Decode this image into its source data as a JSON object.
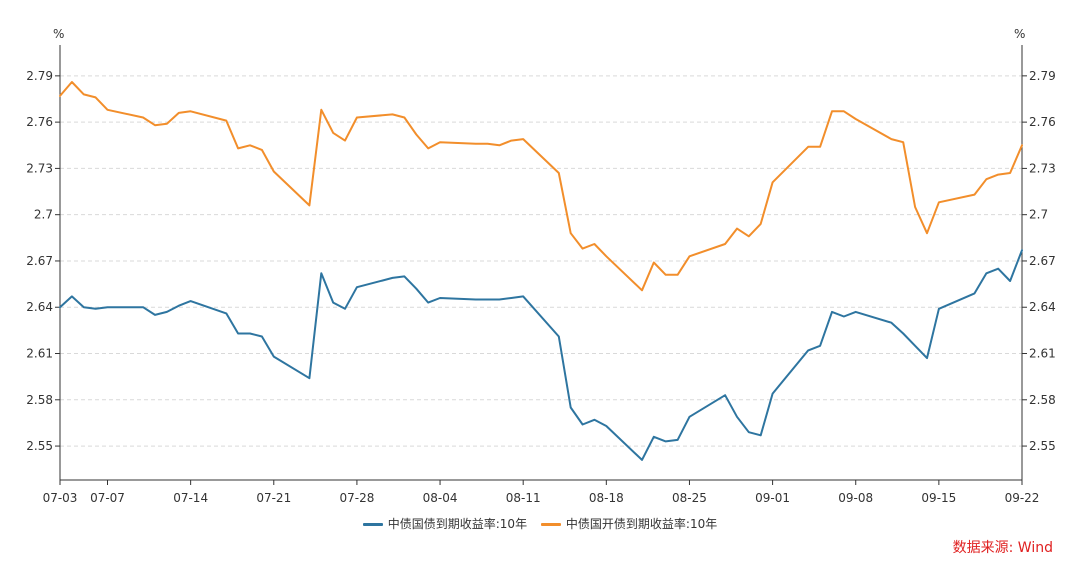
{
  "chart_data": {
    "type": "line",
    "title": "",
    "y_unit_left": "%",
    "y_unit_right": "%",
    "ylim": [
      2.528,
      2.81
    ],
    "yticks": [
      2.55,
      2.58,
      2.61,
      2.64,
      2.67,
      2.7,
      2.73,
      2.76,
      2.79
    ],
    "ytick_labels": [
      "2.55",
      "2.58",
      "2.61",
      "2.64",
      "2.67",
      "2.7",
      "2.73",
      "2.76",
      "2.79"
    ],
    "x_start": "07-03",
    "x_end": "09-22",
    "xtick_labels": [
      "07-03",
      "07-07",
      "07-14",
      "07-21",
      "07-28",
      "08-04",
      "08-11",
      "08-18",
      "08-25",
      "09-01",
      "09-08",
      "09-15",
      "09-22"
    ],
    "x": [
      "07-03",
      "07-04",
      "07-05",
      "07-06",
      "07-07",
      "07-10",
      "07-11",
      "07-12",
      "07-13",
      "07-14",
      "07-17",
      "07-18",
      "07-19",
      "07-20",
      "07-21",
      "07-24",
      "07-25",
      "07-26",
      "07-27",
      "07-28",
      "07-31",
      "08-01",
      "08-02",
      "08-03",
      "08-04",
      "08-07",
      "08-08",
      "08-09",
      "08-10",
      "08-11",
      "08-14",
      "08-15",
      "08-16",
      "08-17",
      "08-18",
      "08-21",
      "08-22",
      "08-23",
      "08-24",
      "08-25",
      "08-28",
      "08-29",
      "08-30",
      "08-31",
      "09-01",
      "09-04",
      "09-05",
      "09-06",
      "09-07",
      "09-08",
      "09-11",
      "09-12",
      "09-13",
      "09-14",
      "09-15",
      "09-18",
      "09-19",
      "09-20",
      "09-21",
      "09-22"
    ],
    "grid": true,
    "legend_position": "bottom-center",
    "series": [
      {
        "name": "中债国债到期收益率:10年",
        "color": "#2e75a0",
        "values": [
          2.64,
          2.647,
          2.64,
          2.639,
          2.64,
          2.64,
          2.635,
          2.637,
          2.641,
          2.644,
          2.636,
          2.623,
          2.623,
          2.621,
          2.608,
          2.594,
          2.662,
          2.643,
          2.639,
          2.653,
          2.659,
          2.66,
          2.652,
          2.643,
          2.646,
          2.645,
          2.645,
          2.645,
          2.646,
          2.647,
          2.621,
          2.575,
          2.564,
          2.567,
          2.563,
          2.541,
          2.556,
          2.553,
          2.554,
          2.569,
          2.583,
          2.569,
          2.559,
          2.557,
          2.584,
          2.612,
          2.615,
          2.637,
          2.634,
          2.637,
          2.63,
          2.623,
          2.615,
          2.607,
          2.639,
          2.649,
          2.662,
          2.665,
          2.657,
          2.677
        ]
      },
      {
        "name": "中债国开债到期收益率:10年",
        "color": "#f28e2b",
        "values": [
          2.777,
          2.786,
          2.778,
          2.776,
          2.768,
          2.763,
          2.758,
          2.759,
          2.766,
          2.767,
          2.761,
          2.743,
          2.745,
          2.742,
          2.728,
          2.706,
          2.768,
          2.753,
          2.748,
          2.763,
          2.765,
          2.763,
          2.752,
          2.743,
          2.747,
          2.746,
          2.746,
          2.745,
          2.748,
          2.749,
          2.727,
          2.688,
          2.678,
          2.681,
          2.673,
          2.651,
          2.669,
          2.661,
          2.661,
          2.673,
          2.681,
          2.691,
          2.686,
          2.694,
          2.721,
          2.744,
          2.744,
          2.767,
          2.767,
          2.762,
          2.749,
          2.747,
          2.705,
          2.688,
          2.708,
          2.713,
          2.723,
          2.726,
          2.727,
          2.745
        ]
      }
    ],
    "source": "数据来源: Wind"
  }
}
